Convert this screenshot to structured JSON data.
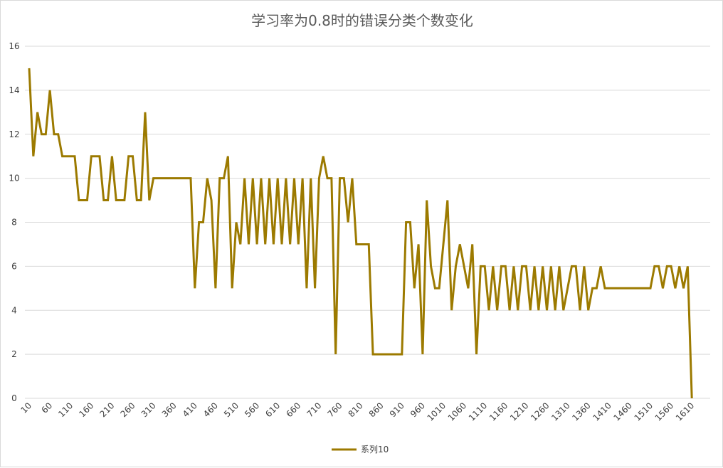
{
  "chart_data": {
    "type": "line",
    "title": "学习率为0.8时的错误分类个数变化",
    "xlabel": "",
    "ylabel": "",
    "ylim": [
      0,
      16
    ],
    "yticks": [
      0,
      2,
      4,
      6,
      8,
      10,
      12,
      14,
      16
    ],
    "x_tick_labels": [
      "10",
      "60",
      "110",
      "160",
      "210",
      "260",
      "310",
      "360",
      "410",
      "460",
      "510",
      "560",
      "610",
      "660",
      "710",
      "760",
      "810",
      "860",
      "910",
      "960",
      "1010",
      "1060",
      "1110",
      "1160",
      "1210",
      "1260",
      "1310",
      "1360",
      "1410",
      "1460",
      "1510",
      "1560",
      "1610"
    ],
    "grid": true,
    "legend_position": "bottom",
    "color": "#9c7a00",
    "x_start": 10,
    "x_step": 10,
    "series": [
      {
        "name": "系列10",
        "values": [
          15,
          11,
          13,
          12,
          12,
          14,
          12,
          12,
          11,
          11,
          11,
          11,
          9,
          9,
          9,
          11,
          11,
          11,
          9,
          9,
          11,
          9,
          9,
          9,
          11,
          11,
          9,
          9,
          13,
          9,
          10,
          10,
          10,
          10,
          10,
          10,
          10,
          10,
          10,
          10,
          5,
          8,
          8,
          10,
          9,
          5,
          10,
          10,
          11,
          5,
          8,
          7,
          10,
          7,
          10,
          7,
          10,
          7,
          10,
          7,
          10,
          7,
          10,
          7,
          10,
          7,
          10,
          5,
          10,
          5,
          10,
          11,
          10,
          10,
          2,
          10,
          10,
          8,
          10,
          7,
          7,
          7,
          7,
          2,
          2,
          2,
          2,
          2,
          2,
          2,
          2,
          8,
          8,
          5,
          7,
          2,
          9,
          6,
          5,
          5,
          7,
          9,
          4,
          6,
          7,
          6,
          5,
          7,
          2,
          6,
          6,
          4,
          6,
          4,
          6,
          6,
          4,
          6,
          4,
          6,
          6,
          4,
          6,
          4,
          6,
          4,
          6,
          4,
          6,
          4,
          5,
          6,
          6,
          4,
          6,
          4,
          5,
          5,
          6,
          5,
          5,
          5,
          5,
          5,
          5,
          5,
          5,
          5,
          5,
          5,
          5,
          6,
          6,
          5,
          6,
          6,
          5,
          6,
          5,
          6,
          0
        ]
      }
    ]
  }
}
